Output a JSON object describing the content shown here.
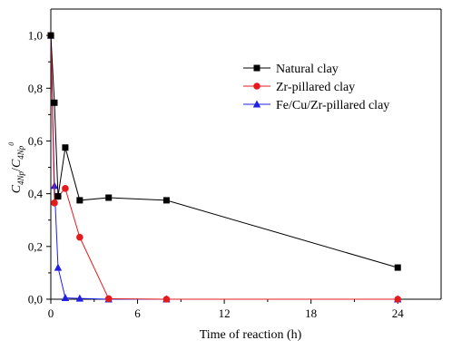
{
  "chart_data": {
    "type": "line",
    "xlabel": "Time of reaction (h)",
    "ylabel": "C4Np/C4Np0",
    "ylabel_parts": {
      "main": "C",
      "sub": "4Np",
      "slash": "/",
      "main2": "C",
      "sub2": "4Np",
      "sup2": "0"
    },
    "xlim": [
      0,
      27
    ],
    "ylim": [
      0,
      1.1
    ],
    "x_ticks": [
      0,
      6,
      12,
      18,
      24
    ],
    "x_tick_labels": [
      "0",
      "6",
      "12",
      "18",
      "24"
    ],
    "y_ticks": [
      0,
      0.2,
      0.4,
      0.6,
      0.8,
      1.0
    ],
    "y_tick_labels": [
      "0,0",
      "0,2",
      "0,4",
      "0,6",
      "0,8",
      "1,0"
    ],
    "grid": false,
    "legend_position": "top-right",
    "series": [
      {
        "name": "Natural clay",
        "color": "#000000",
        "marker": "square",
        "x": [
          0,
          0.25,
          0.5,
          1,
          2,
          4,
          8,
          24
        ],
        "y": [
          1.0,
          0.745,
          0.39,
          0.575,
          0.375,
          0.385,
          0.375,
          0.12
        ]
      },
      {
        "name": "Zr-pillared clay",
        "color": "#e41a1c",
        "marker": "circle",
        "x": [
          0,
          0.25,
          0.5,
          1,
          2,
          4,
          8,
          24
        ],
        "y": [
          1.0,
          0.365,
          0.39,
          0.42,
          0.235,
          0.002,
          0.0,
          0.0
        ]
      },
      {
        "name": "Fe/Cu/Zr-pillared clay",
        "color": "#1f1fe6",
        "marker": "triangle",
        "x": [
          0,
          0.25,
          0.5,
          1,
          2,
          4,
          8,
          24
        ],
        "y": [
          1.0,
          0.43,
          0.12,
          0.005,
          0.003,
          0.0,
          0.0,
          0.0
        ]
      }
    ]
  }
}
